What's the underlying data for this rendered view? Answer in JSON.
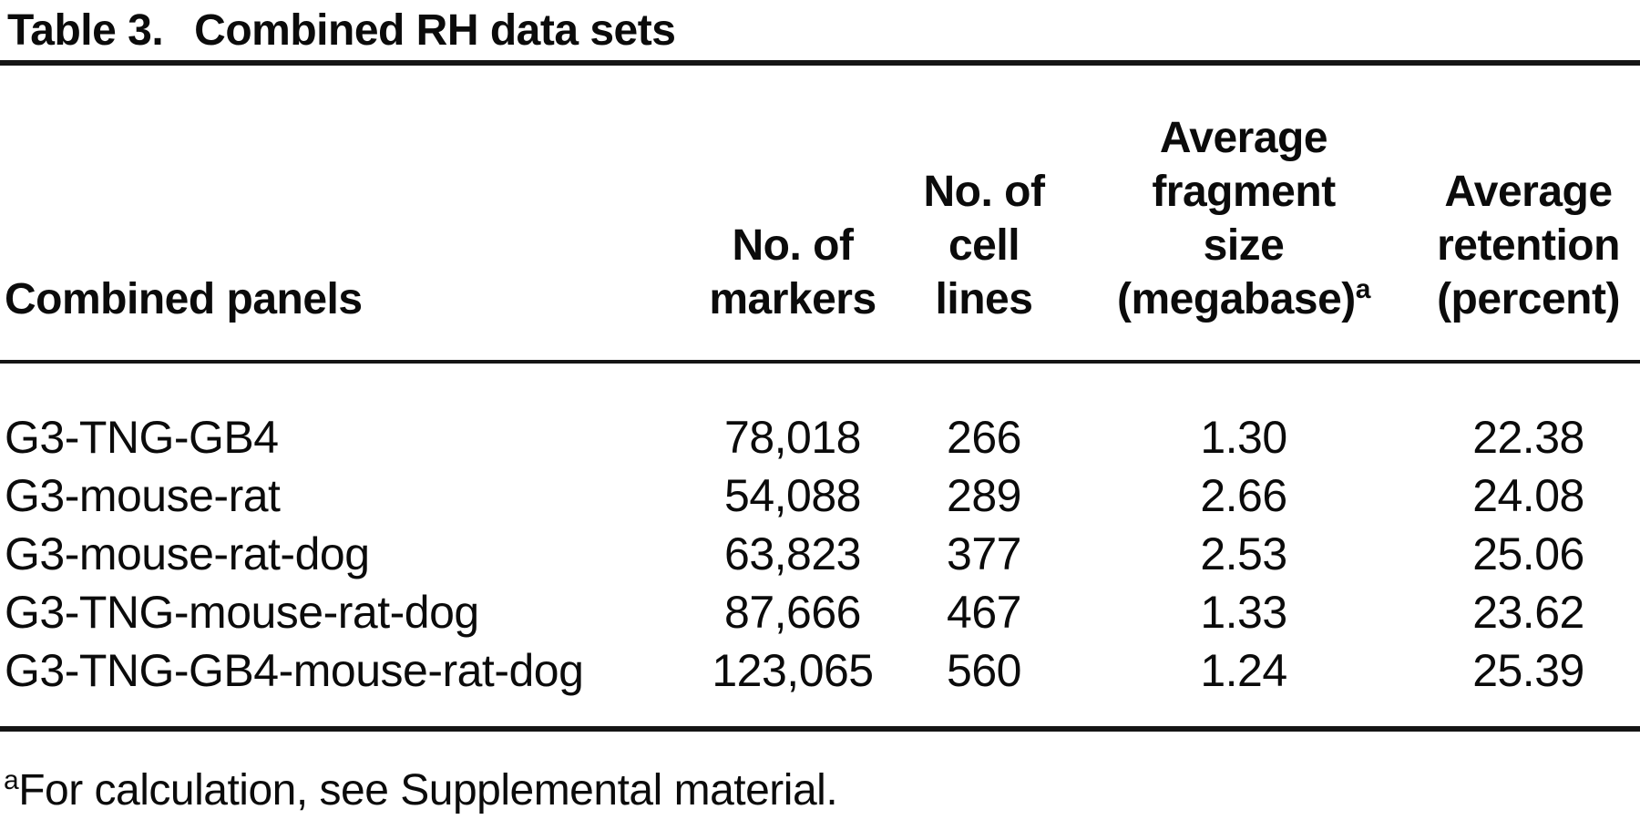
{
  "table": {
    "title_label": "Table 3.",
    "title_text": "Combined RH data sets",
    "header": {
      "col_panels": "Combined panels",
      "col_markers": "No. of\nmarkers",
      "col_cell_lines": "No. of\ncell\nlines",
      "col_fragment": "Average\nfragment\nsize\n(megabase)",
      "col_fragment_sup": "a",
      "col_retention": "Average\nretention\n(percent)"
    },
    "rows": [
      {
        "panel": "G3-TNG-GB4",
        "markers": "78,018",
        "cell_lines": "266",
        "fragment_size": "1.30",
        "retention": "22.38"
      },
      {
        "panel": "G3-mouse-rat",
        "markers": "54,088",
        "cell_lines": "289",
        "fragment_size": "2.66",
        "retention": "24.08"
      },
      {
        "panel": "G3-mouse-rat-dog",
        "markers": "63,823",
        "cell_lines": "377",
        "fragment_size": "2.53",
        "retention": "25.06"
      },
      {
        "panel": "G3-TNG-mouse-rat-dog",
        "markers": "87,666",
        "cell_lines": "467",
        "fragment_size": "1.33",
        "retention": "23.62"
      },
      {
        "panel": "G3-TNG-GB4-mouse-rat-dog",
        "markers": "123,065",
        "cell_lines": "560",
        "fragment_size": "1.24",
        "retention": "25.39"
      }
    ],
    "footnote": {
      "marker": "a",
      "text": "For calculation, see Supplemental material."
    }
  },
  "chart_data": {
    "type": "table",
    "title": "Table 3. Combined RH data sets",
    "columns": [
      "Combined panels",
      "No. of markers",
      "No. of cell lines",
      "Average fragment size (megabase)",
      "Average retention (percent)"
    ],
    "rows": [
      [
        "G3-TNG-GB4",
        78018,
        266,
        1.3,
        22.38
      ],
      [
        "G3-mouse-rat",
        54088,
        289,
        2.66,
        24.08
      ],
      [
        "G3-mouse-rat-dog",
        63823,
        377,
        2.53,
        25.06
      ],
      [
        "G3-TNG-mouse-rat-dog",
        87666,
        467,
        1.33,
        23.62
      ],
      [
        "G3-TNG-GB4-mouse-rat-dog",
        123065,
        560,
        1.24,
        25.39
      ]
    ],
    "footnote": "aFor calculation, see Supplemental material."
  }
}
